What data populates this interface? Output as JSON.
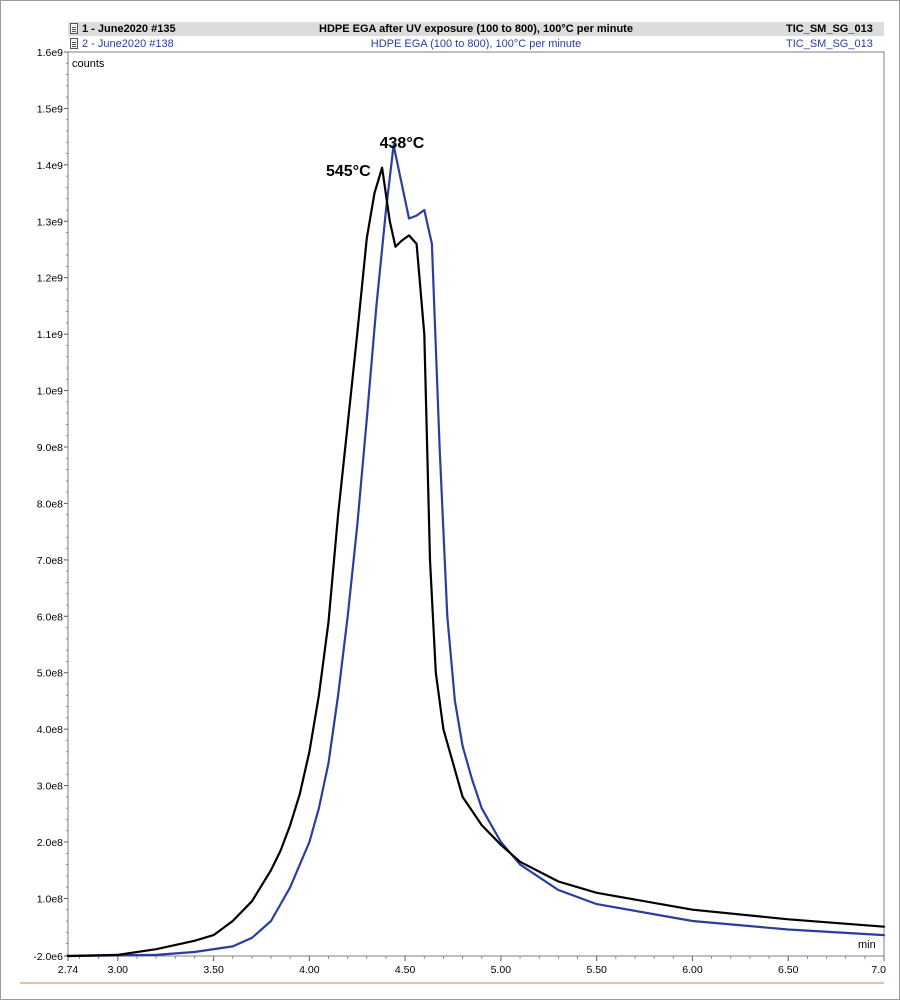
{
  "header": {
    "rows": [
      {
        "name": "1 - June2020 #135",
        "title": "HDPE EGA after UV exposure (100 to 800), 100°C per minute",
        "trace": "TIC_SM_SG_013",
        "color": "#000000"
      },
      {
        "name": "2 - June2020 #138",
        "title": "HDPE EGA (100 to 800), 100°C per minute",
        "trace": "TIC_SM_SG_013",
        "color": "#2b3d9e"
      }
    ]
  },
  "chart_data": {
    "type": "line",
    "ylabel": "counts",
    "xlabel": "min",
    "xlim": [
      2.74,
      7.0
    ],
    "ylim": [
      -2000000,
      1600000000
    ],
    "x_ticks": [
      {
        "value": 2.74,
        "label": "2.74"
      },
      {
        "value": 3.0,
        "label": "3.00"
      },
      {
        "value": 3.5,
        "label": "3.50"
      },
      {
        "value": 4.0,
        "label": "4.00"
      },
      {
        "value": 4.5,
        "label": "4.50"
      },
      {
        "value": 5.0,
        "label": "5.00"
      },
      {
        "value": 5.5,
        "label": "5.50"
      },
      {
        "value": 6.0,
        "label": "6.00"
      },
      {
        "value": 6.5,
        "label": "6.50"
      },
      {
        "value": 7.0,
        "label": "7.0"
      }
    ],
    "y_ticks": [
      {
        "value": -2000000,
        "label": "-2.0e6"
      },
      {
        "value": 100000000,
        "label": "1.0e8"
      },
      {
        "value": 200000000,
        "label": "2.0e8"
      },
      {
        "value": 300000000,
        "label": "3.0e8"
      },
      {
        "value": 400000000,
        "label": "4.0e8"
      },
      {
        "value": 500000000,
        "label": "5.0e8"
      },
      {
        "value": 600000000,
        "label": "6.0e8"
      },
      {
        "value": 700000000,
        "label": "7.0e8"
      },
      {
        "value": 800000000,
        "label": "8.0e8"
      },
      {
        "value": 900000000,
        "label": "9.0e8"
      },
      {
        "value": 1000000000,
        "label": "1.0e9"
      },
      {
        "value": 1100000000,
        "label": "1.1e9"
      },
      {
        "value": 1200000000,
        "label": "1.2e9"
      },
      {
        "value": 1300000000,
        "label": "1.3e9"
      },
      {
        "value": 1400000000,
        "label": "1.4e9"
      },
      {
        "value": 1500000000,
        "label": "1.5e9"
      },
      {
        "value": 1600000000,
        "label": "1.6e9"
      }
    ],
    "series": [
      {
        "name": "1 - June2020 #135",
        "color": "#000000",
        "x": [
          2.74,
          3.0,
          3.2,
          3.4,
          3.5,
          3.6,
          3.7,
          3.8,
          3.85,
          3.9,
          3.95,
          4.0,
          4.05,
          4.1,
          4.15,
          4.2,
          4.25,
          4.3,
          4.34,
          4.38,
          4.42,
          4.45,
          4.48,
          4.52,
          4.56,
          4.6,
          4.63,
          4.66,
          4.7,
          4.75,
          4.8,
          4.9,
          5.0,
          5.1,
          5.3,
          5.5,
          6.0,
          6.5,
          7.0
        ],
        "y": [
          -2000000,
          0,
          10000000,
          25000000,
          35000000,
          60000000,
          95000000,
          150000000,
          185000000,
          230000000,
          285000000,
          360000000,
          460000000,
          590000000,
          780000000,
          940000000,
          1100000000,
          1270000000,
          1350000000,
          1395000000,
          1300000000,
          1255000000,
          1265000000,
          1275000000,
          1260000000,
          1100000000,
          700000000,
          500000000,
          400000000,
          340000000,
          280000000,
          230000000,
          195000000,
          165000000,
          130000000,
          110000000,
          80000000,
          63000000,
          50000000
        ]
      },
      {
        "name": "2 - June2020 #138",
        "color": "#2b3d9e",
        "x": [
          2.74,
          3.0,
          3.2,
          3.4,
          3.6,
          3.7,
          3.8,
          3.9,
          4.0,
          4.05,
          4.1,
          4.15,
          4.2,
          4.25,
          4.3,
          4.35,
          4.4,
          4.44,
          4.48,
          4.52,
          4.56,
          4.6,
          4.64,
          4.68,
          4.72,
          4.76,
          4.8,
          4.85,
          4.9,
          5.0,
          5.1,
          5.3,
          5.5,
          6.0,
          6.5,
          7.0
        ],
        "y": [
          -2000000,
          -1000000,
          0,
          5000000,
          15000000,
          30000000,
          60000000,
          120000000,
          200000000,
          260000000,
          340000000,
          460000000,
          600000000,
          760000000,
          950000000,
          1150000000,
          1320000000,
          1435000000,
          1370000000,
          1305000000,
          1310000000,
          1320000000,
          1260000000,
          900000000,
          600000000,
          450000000,
          370000000,
          310000000,
          260000000,
          200000000,
          160000000,
          115000000,
          90000000,
          60000000,
          45000000,
          35000000
        ]
      }
    ],
    "annotations": [
      {
        "text": "545°C",
        "x": 4.32,
        "y": 1380000000
      },
      {
        "text": "438°C",
        "x": 4.6,
        "y": 1430000000
      }
    ]
  }
}
